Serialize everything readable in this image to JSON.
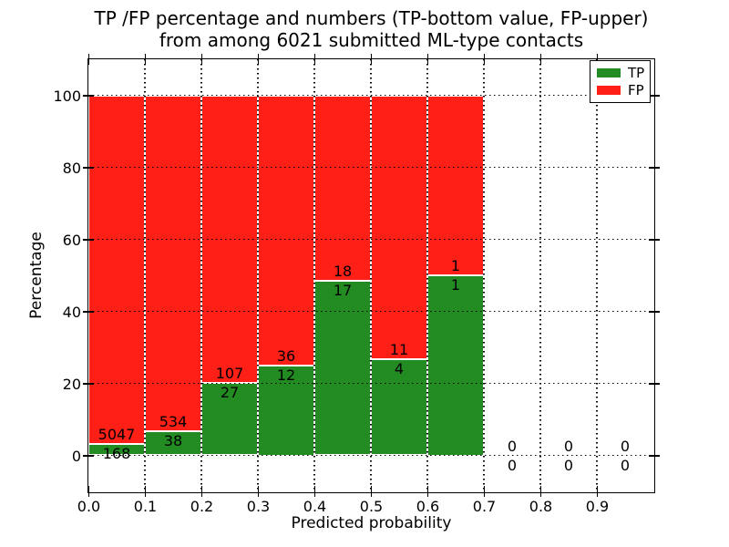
{
  "title": {
    "line1": "TP /FP percentage and numbers (TP-bottom value, FP-upper)",
    "line2": "from among 6021 submitted ML-type contacts"
  },
  "chart_data": {
    "type": "bar",
    "stacked": true,
    "normalized_to_percent": true,
    "total_contacts": 6021,
    "x_bin_start": [
      0.0,
      0.1,
      0.2,
      0.3,
      0.4,
      0.5,
      0.6,
      0.7,
      0.8,
      0.9
    ],
    "bin_width": 0.1,
    "series": [
      {
        "name": "TP",
        "color": "#228b22",
        "counts": [
          168,
          38,
          27,
          12,
          17,
          4,
          1,
          0,
          0,
          0
        ]
      },
      {
        "name": "FP",
        "color": "#fe2016",
        "counts": [
          5047,
          534,
          107,
          36,
          18,
          11,
          1,
          0,
          0,
          0
        ]
      }
    ],
    "bar_edge_color": "#ffffff",
    "xlabel": "Predicted probability",
    "ylabel": "Percentage",
    "xtick_labels": [
      "0.0",
      "0.1",
      "0.2",
      "0.3",
      "0.4",
      "0.5",
      "0.6",
      "0.7",
      "0.8",
      "0.9"
    ],
    "ytick_labels": [
      "0",
      "20",
      "40",
      "60",
      "80",
      "100"
    ],
    "xlim": [
      0.0,
      1.0
    ],
    "ylim": [
      -10,
      110
    ],
    "grid": "dotted",
    "legend": {
      "position": "upper right",
      "entries": [
        {
          "label": "TP",
          "color": "#228b22"
        },
        {
          "label": "FP",
          "color": "#fe2016"
        }
      ]
    }
  }
}
